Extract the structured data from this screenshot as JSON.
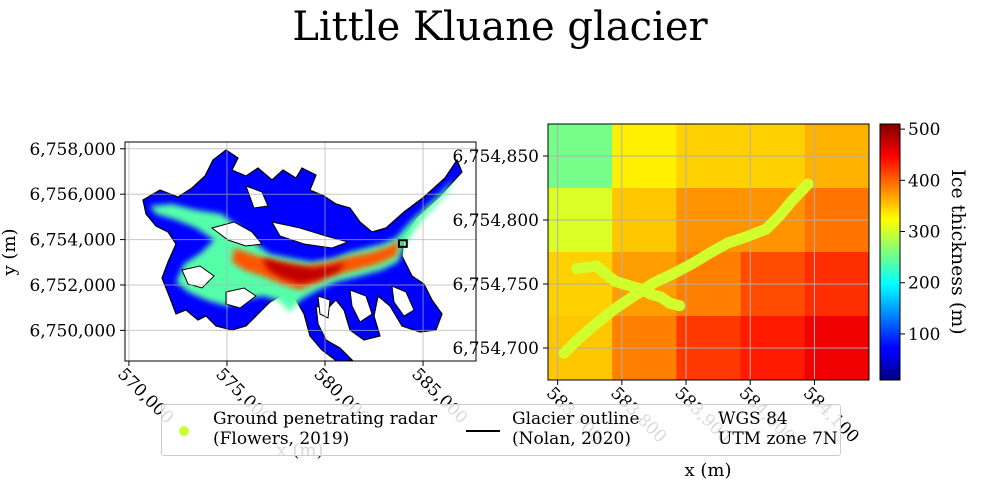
{
  "title": "Little Kluane glacier",
  "colors": {
    "outline": "#000000",
    "gpr_points": "#ccff33",
    "grid": "#b0b0b0"
  },
  "chart_data": [
    {
      "type": "heatmap",
      "panel": "overview-map",
      "xlabel": "x (m)",
      "ylabel": "y (m)",
      "xlim": [
        569800,
        587700
      ],
      "ylim": [
        6748650,
        6758300
      ],
      "xticks": [
        570000,
        575000,
        580000,
        585000
      ],
      "xtick_labels": [
        "570,000",
        "575,000",
        "580,000",
        "585,000"
      ],
      "yticks": [
        6750000,
        6752000,
        6754000,
        6756000,
        6758000
      ],
      "ytick_labels": [
        "6,750,000",
        "6,752,000",
        "6,754,000",
        "6,756,000",
        "6,758,000"
      ],
      "grid": true,
      "colormap": "jet",
      "inset_box": {
        "x": [
          583770,
          584170
        ],
        "y": [
          6753680,
          6753970
        ]
      }
    },
    {
      "type": "heatmap",
      "panel": "zoom-map",
      "xlabel": "x (m)",
      "ylabel": "",
      "xlim": [
        583685,
        584185
      ],
      "ylim": [
        6754675,
        6754875
      ],
      "xticks": [
        583700,
        583800,
        583900,
        584000,
        584100
      ],
      "xtick_labels": [
        "583,700",
        "583,800",
        "583,900",
        "584,000",
        "584,100"
      ],
      "yticks": [
        6754700,
        6754750,
        6754800,
        6754850
      ],
      "ytick_labels": [
        "6,754,700",
        "6,754,750",
        "6,754,800",
        "6,754,850"
      ],
      "grid": true,
      "colormap": "jet",
      "cells": {
        "x_edges": [
          583685,
          583785,
          583885,
          583985,
          584085,
          584185
        ],
        "y_edges_top_down": [
          6754875,
          6754825,
          6754775,
          6754725,
          6754675
        ],
        "thickness": [
          [
            255,
            330,
            345,
            345,
            360
          ],
          [
            305,
            350,
            375,
            375,
            390
          ],
          [
            345,
            370,
            385,
            410,
            425
          ],
          [
            350,
            385,
            420,
            435,
            455
          ]
        ]
      },
      "gpr_track": {
        "thickness": 300,
        "branch_1": [
          [
            583710,
            6754696
          ],
          [
            583730,
            6754706
          ],
          [
            583760,
            6754719
          ],
          [
            583790,
            6754731
          ],
          [
            583820,
            6754741
          ],
          [
            583850,
            6754751
          ],
          [
            583880,
            6754758
          ],
          [
            583910,
            6754766
          ],
          [
            583940,
            6754775
          ],
          [
            583965,
            6754782
          ],
          [
            583995,
            6754787
          ],
          [
            584025,
            6754793
          ],
          [
            584045,
            6754803
          ],
          [
            584065,
            6754815
          ],
          [
            584090,
            6754828
          ]
        ],
        "branch_2": [
          [
            583730,
            6754762
          ],
          [
            583760,
            6754764
          ],
          [
            583775,
            6754758
          ],
          [
            583790,
            6754752
          ],
          [
            583810,
            6754749
          ],
          [
            583830,
            6754746
          ],
          [
            583845,
            6754742
          ],
          [
            583860,
            6754740
          ],
          [
            583875,
            6754735
          ],
          [
            583890,
            6754733
          ]
        ]
      }
    }
  ],
  "colorbar": {
    "label": "Ice thickness (m)",
    "range": [
      10,
      510
    ],
    "ticks": [
      100,
      200,
      300,
      400,
      500
    ]
  },
  "legend": {
    "location": "bottom-center",
    "entries": [
      {
        "label_line1": "Ground penetrating radar",
        "label_line2": "(Flowers, 2019)",
        "marker": "point"
      },
      {
        "label_line1": "Glacier outline",
        "label_line2": "(Nolan, 2020)",
        "marker": "line"
      },
      {
        "label_line1": "WGS 84",
        "label_line2": "UTM zone 7N",
        "marker": "none"
      }
    ]
  }
}
